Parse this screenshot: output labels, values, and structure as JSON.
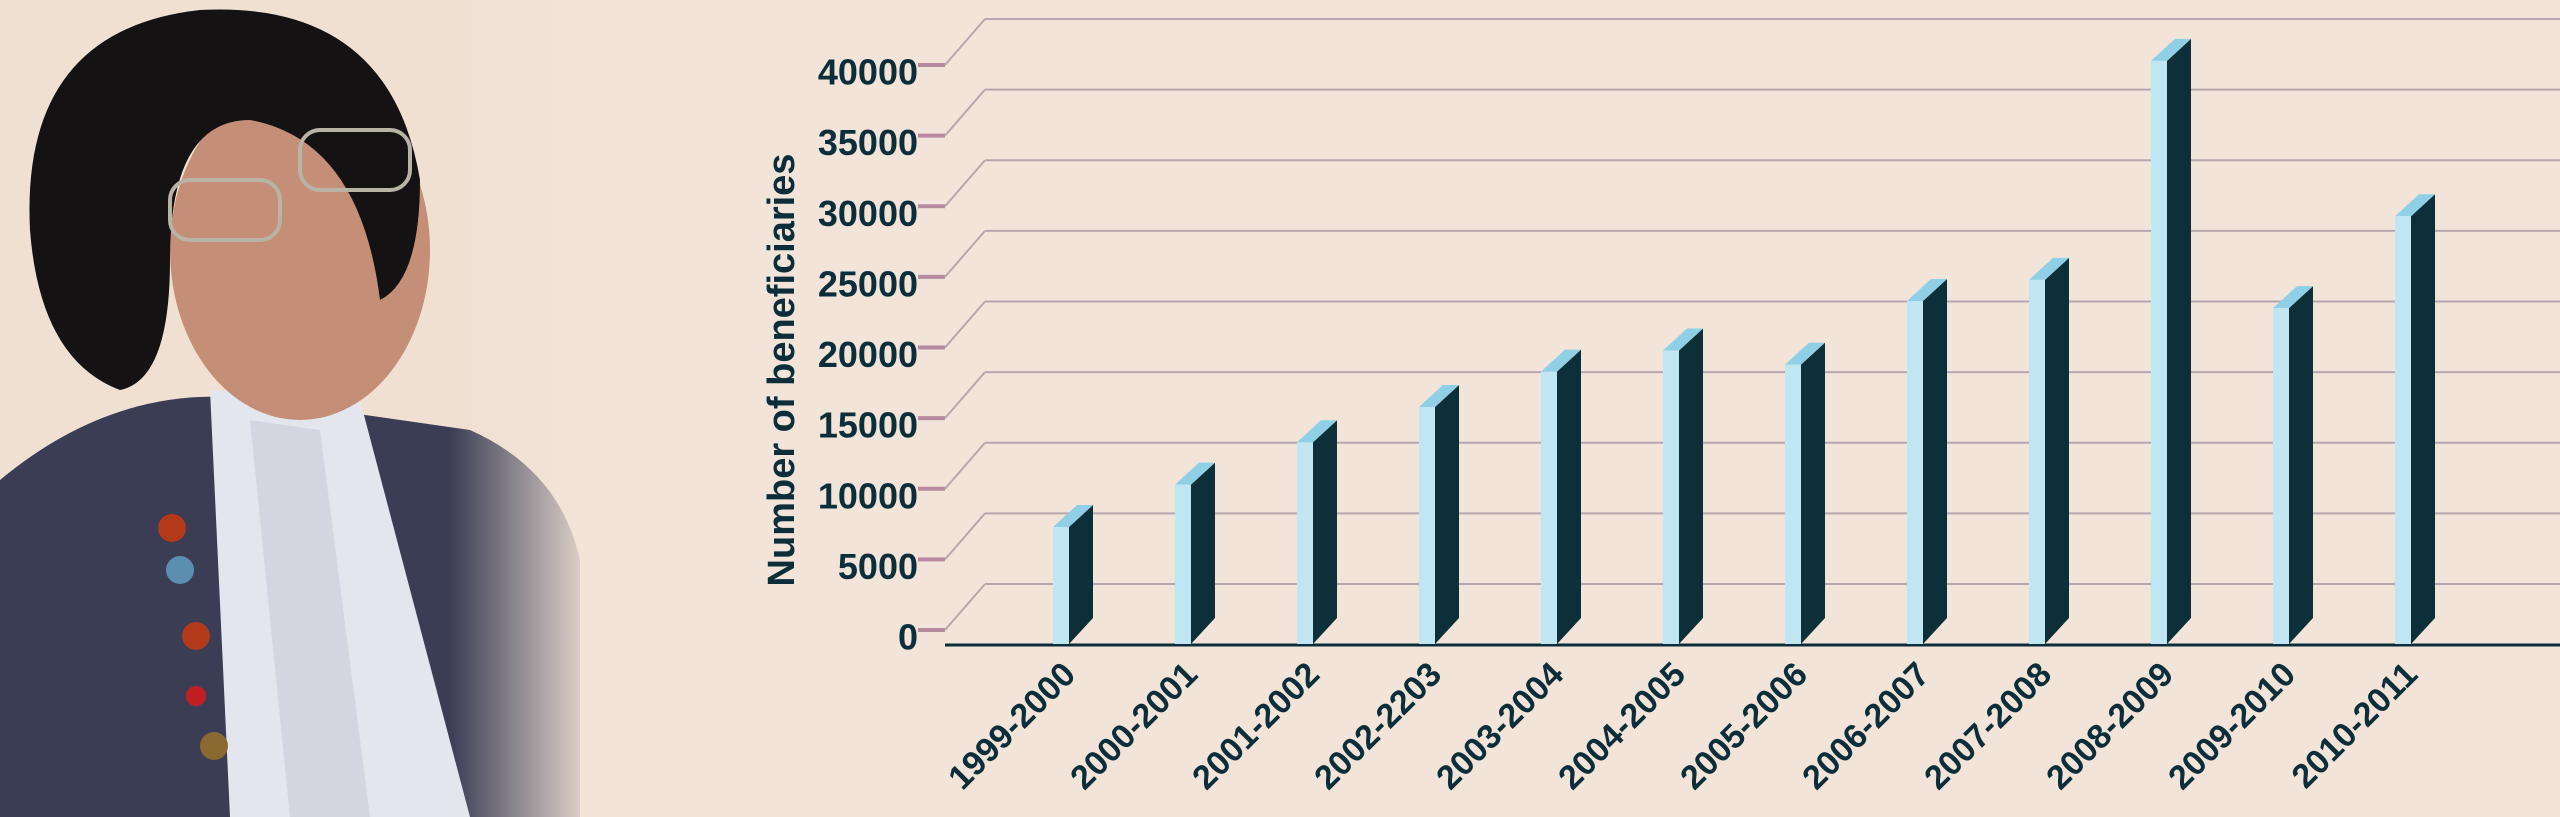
{
  "chart_data": {
    "type": "bar3d",
    "y_label": "Number of beneficiaries",
    "categories": [
      "1999-2000",
      "2000-2001",
      "2001-2002",
      "2002-2203",
      "2003-2004",
      "2004-2005",
      "2005-2006",
      "2006-2007",
      "2007-2008",
      "2008-2009",
      "2009-2010",
      "2010-2011"
    ],
    "values": [
      8000,
      11000,
      14000,
      16500,
      19000,
      20500,
      19500,
      24000,
      25500,
      41000,
      23500,
      30000
    ],
    "front_color": "#bfe6f2",
    "side_color": "#0d2f3a",
    "ylim": [
      0,
      40000
    ],
    "yticks": [
      0,
      5000,
      10000,
      15000,
      20000,
      25000,
      30000,
      35000,
      40000
    ],
    "grid": true
  }
}
